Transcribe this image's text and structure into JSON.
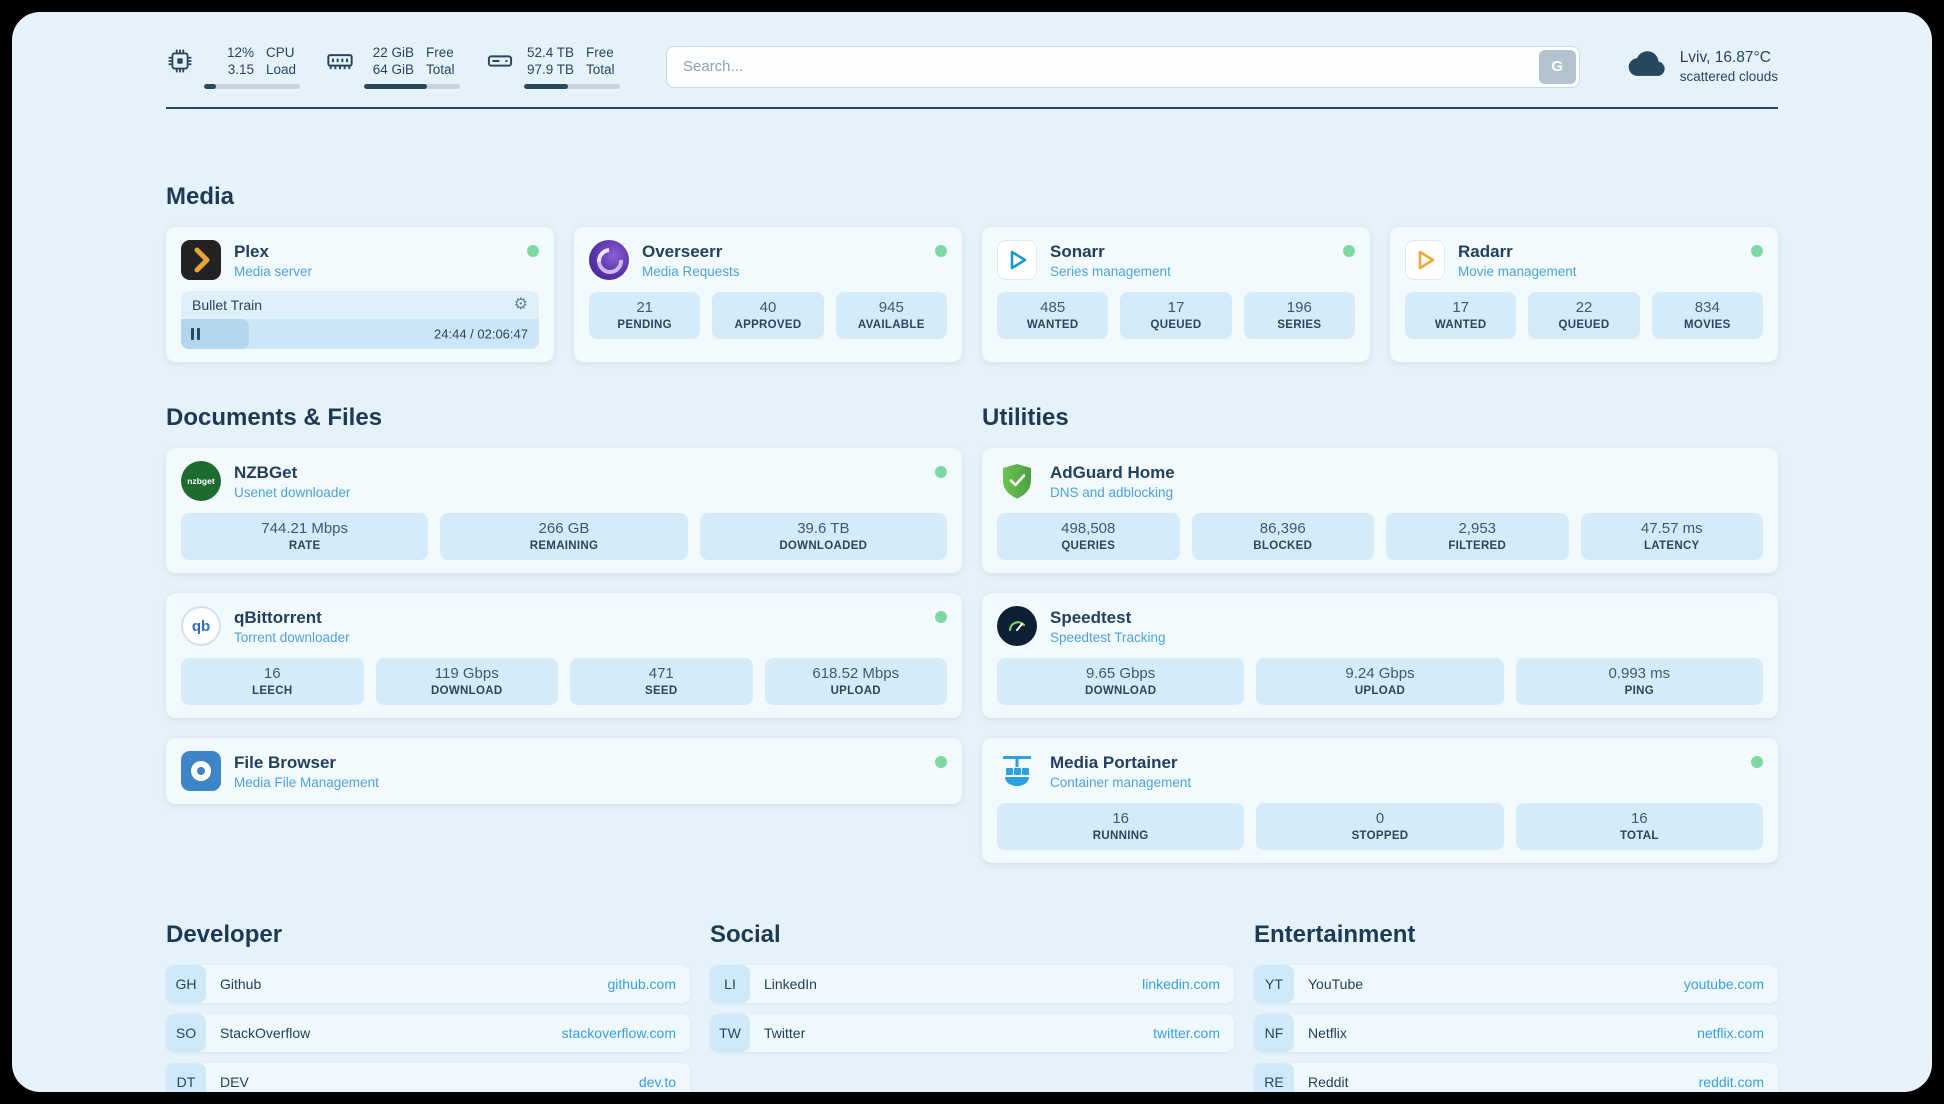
{
  "colors": {
    "accent_navy": "#29475f",
    "link_blue": "#36a0e0",
    "status_green": "#7bd9a1",
    "panel_bg": "#e6f2fa",
    "card_bg": "#f3fafe",
    "stat_box_bg": "#d5ebf9"
  },
  "icons": {
    "gear": "⚙",
    "qb_text": "qb",
    "nzbget_text": "nzbget"
  },
  "topbar": {
    "cpu": {
      "value": "12%",
      "load": "3.15",
      "l1": "CPU",
      "l2": "Load",
      "pct": 12
    },
    "ram": {
      "free": "22 GiB",
      "total": "64 GiB",
      "l1": "Free",
      "l2": "Total",
      "pct": 66
    },
    "disk": {
      "free": "52.4 TB",
      "total": "97.9 TB",
      "l1": "Free",
      "l2": "Total",
      "pct": 46
    },
    "search": {
      "placeholder": "Search...",
      "button": "G"
    },
    "weather": {
      "location": "Lviv, 16.87°C",
      "condition": "scattered clouds"
    }
  },
  "sections": {
    "media": {
      "title": "Media",
      "plex": {
        "name": "Plex",
        "desc": "Media server",
        "now_playing": "Bullet Train",
        "time": "24:44 / 02:06:47",
        "progress_pct": 19
      },
      "overseerr": {
        "name": "Overseerr",
        "desc": "Media Requests",
        "stats": [
          {
            "value": "21",
            "label": "PENDING"
          },
          {
            "value": "40",
            "label": "APPROVED"
          },
          {
            "value": "945",
            "label": "AVAILABLE"
          }
        ]
      },
      "sonarr": {
        "name": "Sonarr",
        "desc": "Series management",
        "stats": [
          {
            "value": "485",
            "label": "WANTED"
          },
          {
            "value": "17",
            "label": "QUEUED"
          },
          {
            "value": "196",
            "label": "SERIES"
          }
        ]
      },
      "radarr": {
        "name": "Radarr",
        "desc": "Movie management",
        "stats": [
          {
            "value": "17",
            "label": "WANTED"
          },
          {
            "value": "22",
            "label": "QUEUED"
          },
          {
            "value": "834",
            "label": "MOVIES"
          }
        ]
      }
    },
    "documents": {
      "title": "Documents & Files",
      "nzbget": {
        "name": "NZBGet",
        "desc": "Usenet downloader",
        "stats": [
          {
            "value": "744.21 Mbps",
            "label": "RATE"
          },
          {
            "value": "266 GB",
            "label": "REMAINING"
          },
          {
            "value": "39.6 TB",
            "label": "DOWNLOADED"
          }
        ]
      },
      "qbittorrent": {
        "name": "qBittorrent",
        "desc": "Torrent downloader",
        "stats": [
          {
            "value": "16",
            "label": "LEECH"
          },
          {
            "value": "119 Gbps",
            "label": "DOWNLOAD"
          },
          {
            "value": "471",
            "label": "SEED"
          },
          {
            "value": "618.52 Mbps",
            "label": "UPLOAD"
          }
        ]
      },
      "filebrowser": {
        "name": "File Browser",
        "desc": "Media File Management"
      }
    },
    "utilities": {
      "title": "Utilities",
      "adguard": {
        "name": "AdGuard Home",
        "desc": "DNS and adblocking",
        "stats": [
          {
            "value": "498,508",
            "label": "QUERIES"
          },
          {
            "value": "86,396",
            "label": "BLOCKED"
          },
          {
            "value": "2,953",
            "label": "FILTERED"
          },
          {
            "value": "47.57 ms",
            "label": "LATENCY"
          }
        ]
      },
      "speedtest": {
        "name": "Speedtest",
        "desc": "Speedtest Tracking",
        "stats": [
          {
            "value": "9.65 Gbps",
            "label": "DOWNLOAD"
          },
          {
            "value": "9.24 Gbps",
            "label": "UPLOAD"
          },
          {
            "value": "0.993 ms",
            "label": "PING"
          }
        ]
      },
      "portainer": {
        "name": "Media Portainer",
        "desc": "Container management",
        "stats": [
          {
            "value": "16",
            "label": "RUNNING"
          },
          {
            "value": "0",
            "label": "STOPPED"
          },
          {
            "value": "16",
            "label": "TOTAL"
          }
        ]
      }
    },
    "bookmarks": {
      "developer": {
        "title": "Developer",
        "items": [
          {
            "abbr": "GH",
            "name": "Github",
            "url": "github.com"
          },
          {
            "abbr": "SO",
            "name": "StackOverflow",
            "url": "stackoverflow.com"
          },
          {
            "abbr": "DT",
            "name": "DEV",
            "url": "dev.to"
          }
        ]
      },
      "social": {
        "title": "Social",
        "items": [
          {
            "abbr": "LI",
            "name": "LinkedIn",
            "url": "linkedin.com"
          },
          {
            "abbr": "TW",
            "name": "Twitter",
            "url": "twitter.com"
          }
        ]
      },
      "entertainment": {
        "title": "Entertainment",
        "items": [
          {
            "abbr": "YT",
            "name": "YouTube",
            "url": "youtube.com"
          },
          {
            "abbr": "NF",
            "name": "Netflix",
            "url": "netflix.com"
          },
          {
            "abbr": "RE",
            "name": "Reddit",
            "url": "reddit.com"
          }
        ]
      }
    }
  }
}
